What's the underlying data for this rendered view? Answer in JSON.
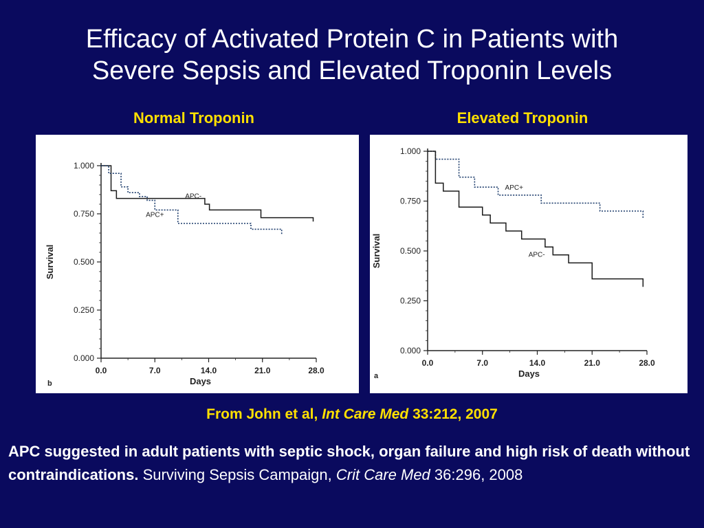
{
  "slide": {
    "title_line1": "Efficacy of Activated Protein C in Patients with",
    "title_line2": "Severe Sepsis and Elevated Troponin Levels",
    "panel_left_heading": "Normal  Troponin",
    "panel_right_heading": "Elevated  Troponin",
    "citation_prefix": "From John et al,",
    "citation_journal": "Int Care Med",
    "citation_suffix": "33:212, 2007",
    "note_bold": "APC suggested in adult patients with septic shock, organ failure and high risk of death without contraindications.",
    "note_source": "Surviving Sepsis Campaign,",
    "note_journal": "Crit Care Med",
    "note_ref": "36:296, 2008"
  },
  "colors": {
    "background": "#0a0a5e",
    "heading": "#ffe000",
    "text": "#ffffff"
  },
  "chart_data": [
    {
      "type": "line",
      "panel_label": "b",
      "xlabel": "Days",
      "ylabel": "Survival",
      "xlim": [
        0,
        28
      ],
      "ylim": [
        0,
        1
      ],
      "x_ticks": [
        "0.0",
        "7.0",
        "14.0",
        "21.0",
        "28.0"
      ],
      "y_ticks": [
        "0.000",
        "0.250",
        "0.500",
        "0.750",
        "1.000"
      ],
      "series": [
        {
          "name": "APC-",
          "style": "solid",
          "x": [
            0,
            1,
            1.3,
            2,
            9,
            9.5,
            10,
            13.5,
            14.1,
            20.8,
            27.6
          ],
          "y": [
            1,
            1,
            0.87,
            0.83,
            0.83,
            0.83,
            0.83,
            0.8,
            0.77,
            0.73,
            0.71
          ]
        },
        {
          "name": "APC+",
          "style": "dotted",
          "x": [
            0,
            1,
            2.6,
            3.5,
            5,
            6,
            7,
            10,
            14,
            19.5,
            23.5
          ],
          "y": [
            1,
            0.96,
            0.89,
            0.86,
            0.84,
            0.82,
            0.77,
            0.7,
            0.7,
            0.67,
            0.64
          ]
        }
      ]
    },
    {
      "type": "line",
      "panel_label": "a",
      "xlabel": "Days",
      "ylabel": "Survival",
      "xlim": [
        0,
        28
      ],
      "ylim": [
        0,
        1
      ],
      "x_ticks": [
        "0.0",
        "7.0",
        "14.0",
        "21.0",
        "28.0"
      ],
      "y_ticks": [
        "0.000",
        "0.250",
        "0.500",
        "0.750",
        "1.000"
      ],
      "series": [
        {
          "name": "APC+",
          "style": "dotted",
          "x": [
            0,
            1,
            4,
            6,
            9,
            14.5,
            22,
            27.5
          ],
          "y": [
            1,
            0.96,
            0.87,
            0.82,
            0.78,
            0.74,
            0.7,
            0.66
          ]
        },
        {
          "name": "APC-",
          "style": "solid",
          "x": [
            0,
            1,
            2,
            4,
            7,
            8,
            10,
            12,
            15,
            16,
            18,
            21,
            25,
            27.5
          ],
          "y": [
            1,
            0.84,
            0.8,
            0.72,
            0.68,
            0.64,
            0.6,
            0.56,
            0.52,
            0.48,
            0.44,
            0.36,
            0.36,
            0.32
          ]
        }
      ]
    }
  ]
}
